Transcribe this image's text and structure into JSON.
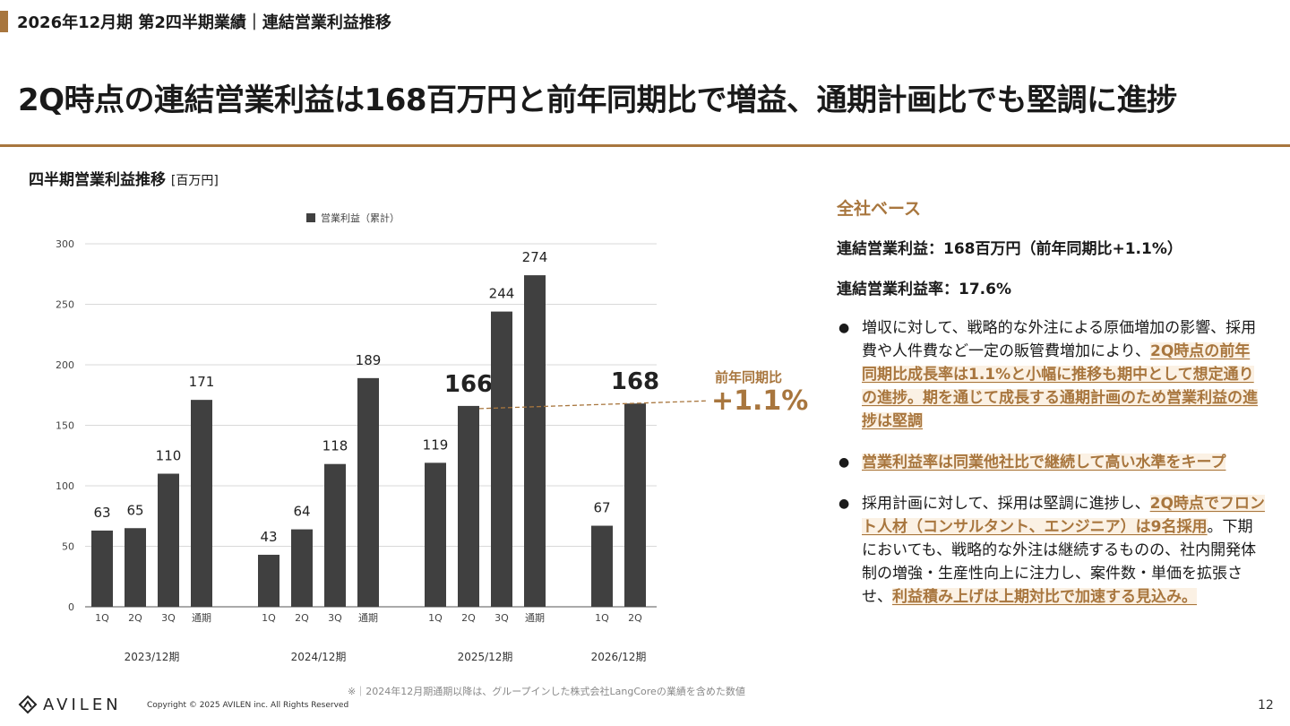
{
  "header": {
    "breadcrumb": "2026年12月期 第2四半期業績｜連結営業利益推移",
    "headline": "2Q時点の連結営業利益は168百万円と前年同期比で増益、通期計画比でも堅調に進捗"
  },
  "chart_section": {
    "title": "四半期営業利益推移",
    "unit": "[百万円]"
  },
  "chart_data": {
    "type": "bar",
    "legend": "営業利益（累計）",
    "legend_position": "top",
    "ylim": [
      0,
      300
    ],
    "yticks": [
      0,
      50,
      100,
      150,
      200,
      250,
      300
    ],
    "grid": true,
    "groups": [
      {
        "label": "2023/12期",
        "bars": [
          {
            "label": "1Q",
            "value": 63
          },
          {
            "label": "2Q",
            "value": 65
          },
          {
            "label": "3Q",
            "value": 110
          },
          {
            "label": "通期",
            "value": 171
          }
        ]
      },
      {
        "label": "2024/12期",
        "bars": [
          {
            "label": "1Q",
            "value": 43
          },
          {
            "label": "2Q",
            "value": 64
          },
          {
            "label": "3Q",
            "value": 118
          },
          {
            "label": "通期",
            "value": 189
          }
        ]
      },
      {
        "label": "2025/12期",
        "bars": [
          {
            "label": "1Q",
            "value": 119
          },
          {
            "label": "2Q",
            "value": 166
          },
          {
            "label": "3Q",
            "value": 244
          },
          {
            "label": "通期",
            "value": 274
          }
        ]
      },
      {
        "label": "2026/12期",
        "bars": [
          {
            "label": "1Q",
            "value": 67
          },
          {
            "label": "2Q",
            "value": 168
          }
        ]
      }
    ],
    "emphasized_values": [
      166,
      168
    ],
    "bar_color": "#404040",
    "annotation": {
      "label": "前年同期比",
      "value": "+1.1%"
    }
  },
  "summary": {
    "base": "全社ベース",
    "metric1": "連結営業利益：168百万円（前年同期比+1.1%）",
    "metric2": "連結営業利益率：17.6%",
    "bullet1_plain": "増収に対して、戦略的な外注による原価増加の影響、採用費や人件費など一定の販管費増加により、",
    "bullet1_hl": "2Q時点の前年同期比成長率は1.1%と小幅に推移も期中として想定通りの進捗。期を通じて成長する通期計画のため営業利益の進捗は堅調",
    "bullet2_hl": "営業利益率は同業他社比で継続して高い水準をキープ",
    "bullet3_plain1": "採用計画に対して、採用は堅調に進捗し、",
    "bullet3_hl1": "2Q時点でフロント人材（コンサルタント、エンジニア）は9名採用",
    "bullet3_plain2": "。下期においても、戦略的な外注は継続するものの、社内開発体制の増強・生産性向上に注力し、案件数・単価を拡張させ、",
    "bullet3_hl2": "利益積み上げは上期対比で加速する見込み。"
  },
  "footer": {
    "note": "※｜2024年12月期通期以降は、グループインした株式会社LangCoreの業績を含めた数値",
    "logo": "AVILEN",
    "copyright": "Copyright © 2025 AVILEN inc. All Rights Reserved",
    "page": "12"
  },
  "colors": {
    "accent": "#a8763e",
    "bar": "#404040",
    "highlight_bg": "#fbf1e4"
  }
}
